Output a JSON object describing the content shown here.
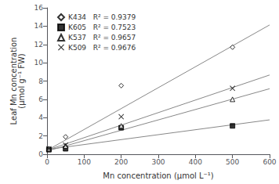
{
  "chart_data": {
    "type": "scatter",
    "title": "",
    "xlabel": "Mn concentration (μmol L⁻¹)",
    "ylabel": "Leaf Mn concentration\n(μmol g⁻¹ FW)",
    "xlim": [
      0,
      600
    ],
    "ylim": [
      0,
      16
    ],
    "xticks": [
      0,
      100,
      200,
      300,
      400,
      500,
      600
    ],
    "yticks": [
      0,
      2,
      4,
      6,
      8,
      10,
      12,
      14,
      16
    ],
    "grid": false,
    "legend": "upper left",
    "series": [
      {
        "type": "line",
        "color": "#888888",
        "x": [
          0,
          600
        ],
        "values": [
          0.42,
          14.13
        ]
      },
      {
        "type": "line",
        "color": "#888888",
        "x": [
          0,
          600
        ],
        "values": [
          0.52,
          3.76
        ]
      },
      {
        "type": "line",
        "color": "#888888",
        "x": [
          0,
          600
        ],
        "values": [
          0.35,
          7.16
        ]
      },
      {
        "type": "line",
        "color": "#888888",
        "x": [
          0,
          600
        ],
        "values": [
          0.44,
          8.66
        ]
      },
      {
        "type": "scatter",
        "name": "K434   R² = 0.9379",
        "marker": "diamond-open",
        "color": "black",
        "x": [
          5,
          50,
          200,
          500
        ],
        "values": [
          0.6,
          1.9,
          7.5,
          11.7
        ]
      },
      {
        "type": "scatter",
        "name": "K605   R² = 0.7523",
        "marker": "square",
        "color": "black",
        "x": [
          5,
          50,
          200,
          500
        ],
        "values": [
          0.5,
          0.6,
          2.9,
          3.1
        ]
      },
      {
        "type": "scatter",
        "name": "K537   R² = 0.9657",
        "marker": "triangle-open",
        "color": "black",
        "x": [
          5,
          50,
          200,
          500
        ],
        "values": [
          0.6,
          0.9,
          3.1,
          6.0
        ]
      },
      {
        "type": "scatter",
        "name": "K509   R² = 0.9676",
        "marker": "x",
        "color": "black",
        "x": [
          5,
          50,
          200,
          500
        ],
        "values": [
          0.6,
          1.0,
          4.1,
          7.2
        ]
      }
    ]
  }
}
